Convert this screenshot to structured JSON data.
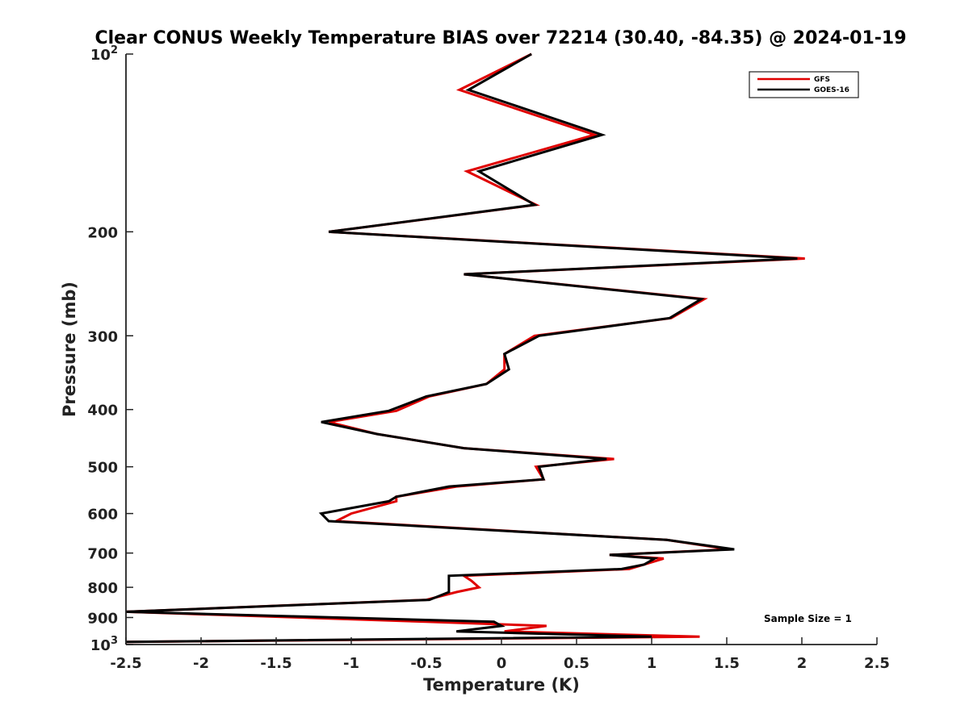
{
  "chart_data": {
    "type": "line",
    "title": "Clear CONUS Weekly Temperature BIAS over 72214 (30.40, -84.35) @ 2024-01-19",
    "xlabel": "Temperature (K)",
    "ylabel": "Pressure (mb)",
    "xlim": [
      -2.5,
      2.5
    ],
    "ylim": [
      100,
      1000
    ],
    "y_scale": "log",
    "y_reversed": true,
    "grid": false,
    "legend_position": "top-right",
    "x_ticks": [
      "-2.5",
      "-2",
      "-1.5",
      "-1",
      "-0.5",
      "0",
      "0.5",
      "1",
      "1.5",
      "2",
      "2.5"
    ],
    "x_tick_values": [
      -2.5,
      -2,
      -1.5,
      -1,
      -0.5,
      0,
      0.5,
      1,
      1.5,
      2,
      2.5
    ],
    "y_ticks": [
      {
        "value": 100,
        "base": "10",
        "exp": "2",
        "label": ""
      },
      {
        "value": 200,
        "label": "200"
      },
      {
        "value": 300,
        "label": "300"
      },
      {
        "value": 400,
        "label": "400"
      },
      {
        "value": 500,
        "label": "500"
      },
      {
        "value": 600,
        "label": "600"
      },
      {
        "value": 700,
        "label": "700"
      },
      {
        "value": 800,
        "label": "800"
      },
      {
        "value": 900,
        "label": "900"
      },
      {
        "value": 1000,
        "base": "10",
        "exp": "3",
        "label": ""
      }
    ],
    "annotation": "Sample Size = 1",
    "series": [
      {
        "name": "GFS",
        "color": "#e00000",
        "points": [
          [
            0.2,
            100
          ],
          [
            -0.28,
            115
          ],
          [
            0.62,
            137
          ],
          [
            -0.23,
            158
          ],
          [
            0.23,
            180
          ],
          [
            -1.15,
            200
          ],
          [
            2.02,
            222
          ],
          [
            -0.25,
            236
          ],
          [
            1.35,
            260
          ],
          [
            1.13,
            280
          ],
          [
            0.22,
            300
          ],
          [
            0.02,
            322
          ],
          [
            0.02,
            342
          ],
          [
            -0.1,
            362
          ],
          [
            -0.48,
            380
          ],
          [
            -0.7,
            402
          ],
          [
            -1.15,
            420
          ],
          [
            -0.83,
            440
          ],
          [
            -0.25,
            465
          ],
          [
            0.75,
            485
          ],
          [
            0.23,
            500
          ],
          [
            0.28,
            525
          ],
          [
            -0.3,
            540
          ],
          [
            -0.7,
            562
          ],
          [
            -0.7,
            572
          ],
          [
            -1.0,
            600
          ],
          [
            -1.1,
            618
          ],
          [
            1.1,
            665
          ],
          [
            1.52,
            690
          ],
          [
            0.72,
            705
          ],
          [
            1.08,
            715
          ],
          [
            0.95,
            732
          ],
          [
            0.85,
            745
          ],
          [
            -0.25,
            765
          ],
          [
            -0.2,
            780
          ],
          [
            -0.15,
            800
          ],
          [
            -0.3,
            815
          ],
          [
            -0.5,
            840
          ],
          [
            -2.5,
            880
          ],
          [
            -0.5,
            915
          ],
          [
            0.3,
            930
          ],
          [
            0.02,
            950
          ],
          [
            1.32,
            970
          ],
          [
            -2.5,
            990
          ]
        ]
      },
      {
        "name": "GOES-16",
        "color": "#000000",
        "points": [
          [
            0.2,
            100
          ],
          [
            -0.22,
            115
          ],
          [
            0.67,
            137
          ],
          [
            -0.15,
            158
          ],
          [
            0.22,
            180
          ],
          [
            -1.15,
            200
          ],
          [
            1.97,
            222
          ],
          [
            -0.25,
            236
          ],
          [
            1.33,
            260
          ],
          [
            1.12,
            280
          ],
          [
            0.25,
            300
          ],
          [
            0.02,
            322
          ],
          [
            0.05,
            342
          ],
          [
            -0.1,
            362
          ],
          [
            -0.5,
            380
          ],
          [
            -0.75,
            402
          ],
          [
            -1.2,
            420
          ],
          [
            -0.83,
            440
          ],
          [
            -0.25,
            465
          ],
          [
            0.7,
            485
          ],
          [
            0.25,
            500
          ],
          [
            0.28,
            525
          ],
          [
            -0.35,
            540
          ],
          [
            -0.7,
            562
          ],
          [
            -0.75,
            572
          ],
          [
            -1.2,
            600
          ],
          [
            -1.15,
            618
          ],
          [
            1.1,
            665
          ],
          [
            1.55,
            690
          ],
          [
            0.72,
            705
          ],
          [
            1.02,
            715
          ],
          [
            0.95,
            732
          ],
          [
            0.8,
            745
          ],
          [
            -0.35,
            765
          ],
          [
            -0.35,
            780
          ],
          [
            -0.35,
            800
          ],
          [
            -0.35,
            815
          ],
          [
            -0.48,
            840
          ],
          [
            -2.5,
            880
          ],
          [
            -0.05,
            915
          ],
          [
            0.0,
            930
          ],
          [
            -0.3,
            950
          ],
          [
            1.0,
            970
          ],
          [
            -2.5,
            990
          ]
        ]
      }
    ]
  }
}
